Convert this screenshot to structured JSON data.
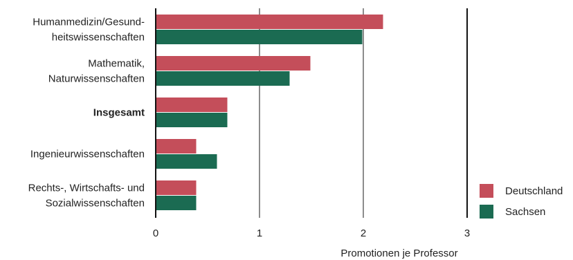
{
  "chart_data": {
    "type": "bar",
    "orientation": "horizontal",
    "categories": [
      {
        "lines": [
          "Humanmedizin/Gesund-",
          "heitswissenschaften"
        ],
        "bold": false
      },
      {
        "lines": [
          "Mathematik,",
          "Naturwissenschaften"
        ],
        "bold": false
      },
      {
        "lines": [
          "Insgesamt"
        ],
        "bold": true
      },
      {
        "lines": [
          "Ingenieurwissenschaften"
        ],
        "bold": false
      },
      {
        "lines": [
          "Rechts-, Wirtschafts- und",
          "Sozialwissenschaften"
        ],
        "bold": false
      }
    ],
    "series": [
      {
        "name": "Deutschland",
        "color": "#c44e5a",
        "values": [
          2.19,
          1.49,
          0.69,
          0.39,
          0.39
        ]
      },
      {
        "name": "Sachsen",
        "color": "#1b6b52",
        "values": [
          1.99,
          1.29,
          0.69,
          0.59,
          0.39
        ]
      }
    ],
    "xlim": [
      0,
      3
    ],
    "xticks": [
      "0",
      "1",
      "2",
      "3"
    ],
    "xlabel": "Promotionen je Professor",
    "ylabel": "",
    "title": "",
    "grid": true,
    "legend_position": "bottom-right"
  }
}
